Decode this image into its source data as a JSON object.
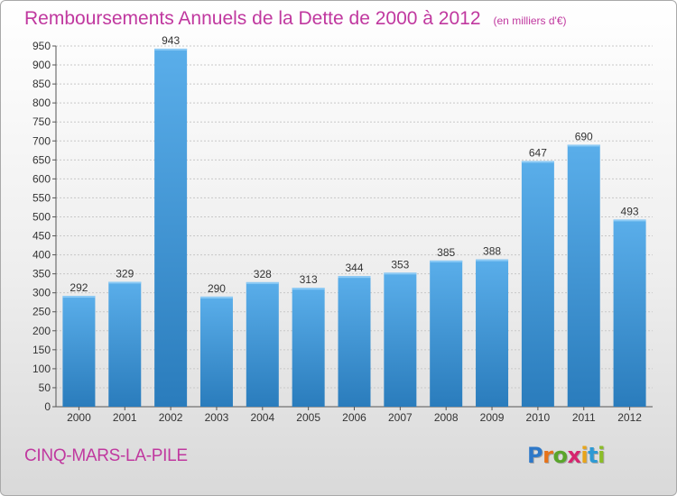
{
  "title": "Remboursements Annuels de la Dette de 2000 à 2012",
  "unit_note": "(en milliers d'€)",
  "city": "CINQ-MARS-LA-PILE",
  "logo": {
    "letters": [
      "P",
      "r",
      "o",
      "x",
      "i",
      "t",
      "i"
    ],
    "colors": [
      "#2e78c8",
      "#e6731a",
      "#5aa52b",
      "#d6256e",
      "#e8a51a",
      "#2e9ad4",
      "#8bbd27"
    ]
  },
  "colors": {
    "accent": "#c0389f",
    "bar_top": "#5aaeea",
    "bar_bottom": "#2a7cbc",
    "grid": "#c8c8c8",
    "axis": "#555555"
  },
  "chart_data": {
    "type": "bar",
    "categories": [
      "2000",
      "2001",
      "2002",
      "2003",
      "2004",
      "2005",
      "2006",
      "2007",
      "2008",
      "2009",
      "2010",
      "2011",
      "2012"
    ],
    "values": [
      292,
      329,
      943,
      290,
      328,
      313,
      344,
      353,
      385,
      388,
      647,
      690,
      493
    ],
    "ylim": [
      0,
      950
    ],
    "yticks": [
      0,
      50,
      100,
      150,
      200,
      250,
      300,
      350,
      400,
      450,
      500,
      550,
      600,
      650,
      700,
      750,
      800,
      850,
      900,
      950
    ],
    "grid": true,
    "data_labels": true
  }
}
